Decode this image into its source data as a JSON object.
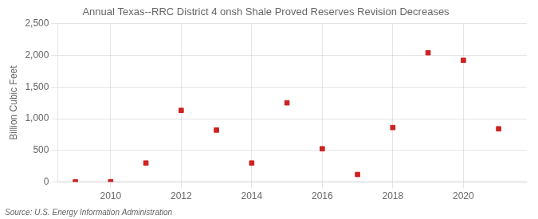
{
  "chart_data": {
    "type": "scatter",
    "title": "Annual Texas--RRC District 4 onsh Shale Proved Reserves Revision Decreases",
    "ylabel": "Billion Cubic Feet",
    "annotations": [
      "Source: U.S. Energy Information Administration"
    ],
    "x": [
      2009,
      2010,
      2011,
      2012,
      2013,
      2014,
      2015,
      2016,
      2017,
      2018,
      2019,
      2020,
      2021
    ],
    "values": [
      2,
      5,
      300,
      1130,
      820,
      300,
      1250,
      525,
      120,
      860,
      2040,
      1920,
      840
    ],
    "color": "#CC2222",
    "marker": "square",
    "xlim": [
      2008.5,
      2021.8
    ],
    "xticks": [
      2010,
      2012,
      2014,
      2016,
      2018,
      2020
    ],
    "ylim": [
      0,
      2500
    ],
    "yticks": [
      0,
      500,
      {
        "value": 1000,
        "label": "1,000"
      },
      {
        "value": 1500,
        "label": "1,500"
      },
      {
        "value": 2000,
        "label": "2,000"
      },
      {
        "value": 2500,
        "label": "2,500"
      }
    ],
    "grid": true
  }
}
